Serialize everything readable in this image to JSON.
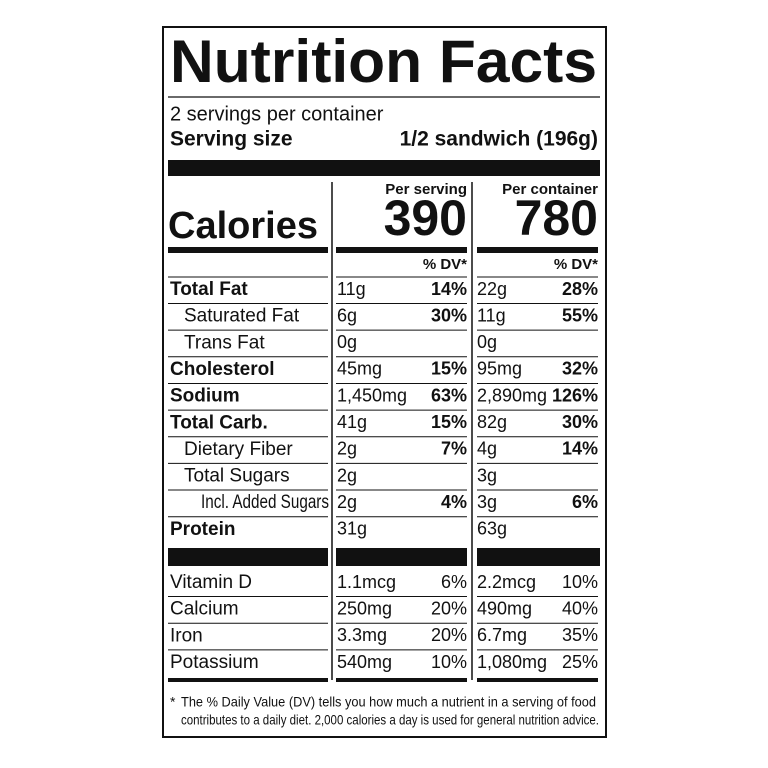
{
  "title": "Nutrition Facts",
  "servings_per_container": "2 servings per container",
  "serving_size": {
    "label": "Serving size",
    "value": "1/2 sandwich (196g)"
  },
  "calories": {
    "label": "Calories",
    "columns": [
      {
        "header": "Per serving",
        "value": "390"
      },
      {
        "header": "Per container",
        "value": "780"
      }
    ]
  },
  "dv_header": [
    "% DV*",
    "% DV*"
  ],
  "nutrients": [
    {
      "name": "Total Fat",
      "cells": [
        [
          "11g",
          "14%"
        ],
        [
          "22g",
          "28%"
        ]
      ]
    },
    {
      "name": "Saturated Fat",
      "cells": [
        [
          "6g",
          "30%"
        ],
        [
          "11g",
          "55%"
        ]
      ]
    },
    {
      "name": "Trans Fat",
      "cells": [
        [
          "0g"
        ],
        [
          "0g"
        ]
      ]
    },
    {
      "name": "Cholesterol",
      "cells": [
        [
          "45mg",
          "15%"
        ],
        [
          "95mg",
          "32%"
        ]
      ]
    },
    {
      "name": "Sodium",
      "cells": [
        [
          "1,450mg",
          "63%"
        ],
        [
          "2,890mg",
          "126%"
        ]
      ]
    },
    {
      "name": "Total Carb.",
      "cells": [
        [
          "41g",
          "15%"
        ],
        [
          "82g",
          "30%"
        ]
      ]
    },
    {
      "name": "Dietary Fiber",
      "cells": [
        [
          "2g",
          "7%"
        ],
        [
          "4g",
          "14%"
        ]
      ]
    },
    {
      "name": "Total Sugars",
      "cells": [
        [
          "2g"
        ],
        [
          "3g"
        ]
      ]
    },
    {
      "name": "Incl. Added Sugars",
      "cells": [
        [
          "2g",
          "4%"
        ],
        [
          "3g",
          "6%"
        ]
      ]
    },
    {
      "name": "Protein",
      "cells": [
        [
          "31g"
        ],
        [
          "63g"
        ]
      ]
    }
  ],
  "vitamins": [
    {
      "name": "Vitamin D",
      "cells": [
        [
          "1.1mcg",
          "6%"
        ],
        [
          "2.2mcg",
          "10%"
        ]
      ]
    },
    {
      "name": "Calcium",
      "cells": [
        [
          "250mg",
          "20%"
        ],
        [
          "490mg",
          "40%"
        ]
      ]
    },
    {
      "name": "Iron",
      "cells": [
        [
          "3.3mg",
          "20%"
        ],
        [
          "6.7mg",
          "35%"
        ]
      ]
    },
    {
      "name": "Potassium",
      "cells": [
        [
          "540mg",
          "10%"
        ],
        [
          "1,080mg",
          "25%"
        ]
      ]
    }
  ],
  "footnote": {
    "marker": "*",
    "lines": [
      "The % Daily Value (DV) tells you how much a nutrient in a serving of food",
      "contributes to a daily diet. 2,000 calories a day is used for general nutrition advice."
    ]
  }
}
